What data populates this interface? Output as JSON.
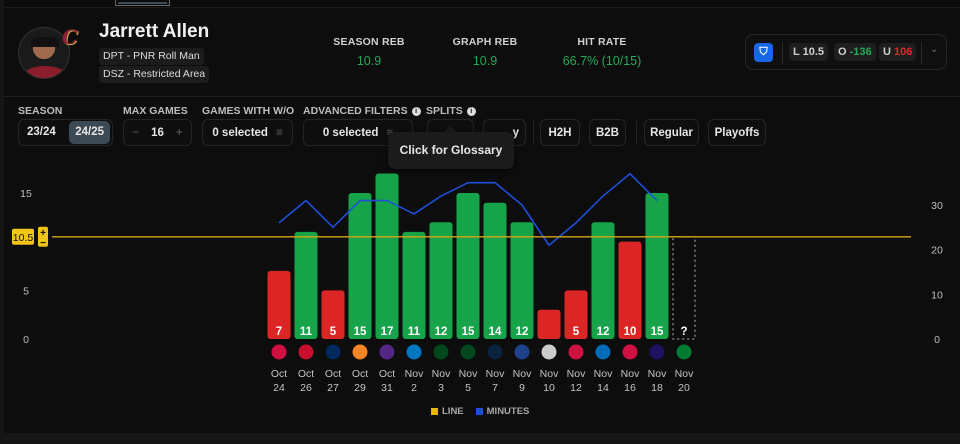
{
  "player": {
    "name": "Jarrett Allen",
    "tags": [
      "DPT - PNR Roll Man",
      "DSZ - Restricted Area"
    ],
    "team_logo": "C"
  },
  "stats": [
    {
      "label": "SEASON REB",
      "value": "10.9"
    },
    {
      "label": "GRAPH REB",
      "value": "10.9"
    },
    {
      "label": "HIT RATE",
      "value": "66.7% (10/15)"
    }
  ],
  "odds": {
    "book_icon": "fanduel-logo-icon",
    "line_prefix": "L",
    "line": "10.5",
    "over_prefix": "O",
    "over": "-136",
    "under_prefix": "U",
    "under": "106"
  },
  "filters": {
    "season_label": "SEASON",
    "seasons": [
      "23/24",
      "24/25"
    ],
    "active_season": "24/25",
    "max_games_label": "MAX GAMES",
    "max_games_value": "16",
    "minus": "−",
    "plus": "+",
    "games_wo_label": "GAMES WITH W/O",
    "games_wo_value": "0 selected",
    "advanced_label": "ADVANCED FILTERS",
    "advanced_value": "0 selected",
    "splits_label": "SPLITS",
    "split_buttons": [
      "y",
      "H2H",
      "B2B",
      "Regular",
      "Playoffs"
    ]
  },
  "tooltip": "Click for Glossary",
  "line_badge": {
    "value": "10.5",
    "plus": "+",
    "minus": "−"
  },
  "colors": {
    "hit": "#16a34a",
    "miss": "#dc2626",
    "line": "#d4a514",
    "minutes": "#1f4fd6",
    "text_green": "#25a857"
  },
  "legend": [
    {
      "name": "LINE",
      "color": "#e6b415"
    },
    {
      "name": "MINUTES",
      "color": "#1f4fd6"
    }
  ],
  "chart_data": {
    "type": "bar",
    "title": "",
    "xlabel": "",
    "ylabel": "Rebounds",
    "y2label": "Minutes",
    "ylim": [
      0,
      15
    ],
    "yticks": [
      0,
      5,
      15
    ],
    "y2lim": [
      0,
      30
    ],
    "y2ticks": [
      0,
      10,
      20,
      30
    ],
    "line_value": 10.5,
    "categories": [
      {
        "month": "Oct",
        "day": "24",
        "opp": "Raptors"
      },
      {
        "month": "Oct",
        "day": "26",
        "opp": "Pistons"
      },
      {
        "month": "Oct",
        "day": "27",
        "opp": "Wizards"
      },
      {
        "month": "Oct",
        "day": "29",
        "opp": "Knicks"
      },
      {
        "month": "Oct",
        "day": "31",
        "opp": "Lakers"
      },
      {
        "month": "Nov",
        "day": "2",
        "opp": "Magic"
      },
      {
        "month": "Nov",
        "day": "3",
        "opp": "Bucks"
      },
      {
        "month": "Nov",
        "day": "5",
        "opp": "Bucks"
      },
      {
        "month": "Nov",
        "day": "7",
        "opp": "Pelicans"
      },
      {
        "month": "Nov",
        "day": "9",
        "opp": "Warriors"
      },
      {
        "month": "Nov",
        "day": "10",
        "opp": "Nets"
      },
      {
        "month": "Nov",
        "day": "12",
        "opp": "Bulls"
      },
      {
        "month": "Nov",
        "day": "14",
        "opp": "76ers"
      },
      {
        "month": "Nov",
        "day": "16",
        "opp": "Bulls"
      },
      {
        "month": "Nov",
        "day": "18",
        "opp": "Hornets"
      },
      {
        "month": "Nov",
        "day": "20",
        "opp": "Celtics"
      }
    ],
    "series": [
      {
        "name": "Rebounds",
        "type": "bar",
        "values": [
          7,
          11,
          5,
          15,
          17,
          11,
          12,
          15,
          14,
          12,
          3,
          5,
          12,
          10,
          15,
          null
        ],
        "labels": [
          "7",
          "11",
          "5",
          "15",
          "17",
          "11",
          "12",
          "15",
          "14",
          "12",
          "",
          "5",
          "12",
          "10",
          "15",
          "?"
        ]
      },
      {
        "name": "MINUTES",
        "type": "line",
        "values": [
          26,
          31,
          25,
          31,
          31,
          28,
          32,
          35,
          35,
          30,
          21,
          26,
          32,
          37,
          31,
          null
        ]
      },
      {
        "name": "LINE",
        "type": "hline",
        "value": 10.5
      }
    ]
  }
}
